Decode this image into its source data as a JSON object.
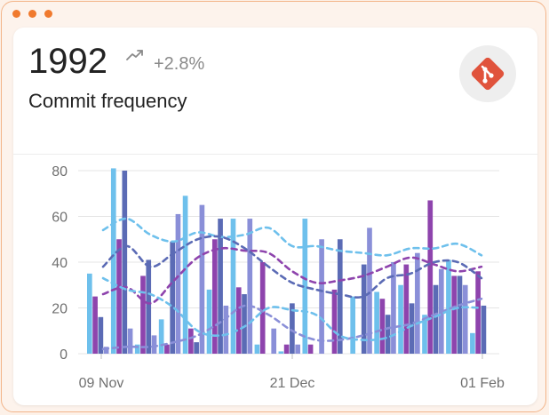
{
  "window": {
    "accent": "#f07a2e"
  },
  "metric": {
    "value": "1992",
    "trend_icon": "trending-up-icon",
    "change": "+2.8%",
    "label": "Commit frequency",
    "logo_icon": "git-logo-icon",
    "logo_color": "#e0533c"
  },
  "chart_data": {
    "type": "bar",
    "y_ticks": [
      "80",
      "60",
      "40",
      "20",
      "0"
    ],
    "x_ticks": [
      "09 Nov",
      "21 Dec",
      "01 Feb"
    ],
    "ylim": [
      0,
      80
    ],
    "colors": [
      "#6ec0ec",
      "#8e44ad",
      "#5b6bb5",
      "#8a8fd8"
    ],
    "groups": [
      [
        35,
        25,
        16,
        3
      ],
      [
        81,
        50,
        80,
        11
      ],
      [
        4,
        34,
        41,
        8
      ],
      [
        15,
        4,
        49,
        61
      ],
      [
        69,
        11,
        5,
        65
      ],
      [
        28,
        50,
        59,
        21
      ],
      [
        59,
        29,
        26,
        59
      ],
      [
        4,
        40,
        0,
        11
      ],
      [
        1,
        4,
        22,
        4
      ],
      [
        59,
        4,
        0,
        50
      ],
      [
        0,
        28,
        50,
        0
      ],
      [
        25,
        0,
        39,
        55
      ],
      [
        27,
        24,
        17,
        40
      ],
      [
        30,
        39,
        22,
        44
      ],
      [
        17,
        67,
        30,
        37
      ],
      [
        41,
        34,
        34,
        30
      ],
      [
        9,
        36,
        21,
        0
      ]
    ],
    "trend_lines": [
      {
        "color": "#6ec0ec",
        "values": [
          54,
          59,
          52,
          49,
          53,
          51,
          52,
          55,
          47,
          47,
          45,
          44,
          43,
          46,
          46,
          48,
          43
        ]
      },
      {
        "color": "#8e44ad",
        "values": [
          26,
          29,
          22,
          32,
          42,
          46,
          45,
          44,
          36,
          31,
          32,
          34,
          38,
          42,
          39,
          36,
          38
        ]
      },
      {
        "color": "#5b6bb5",
        "values": [
          38,
          47,
          38,
          44,
          50,
          51,
          46,
          38,
          31,
          28,
          26,
          25,
          33,
          35,
          40,
          40,
          33
        ]
      },
      {
        "color": "#8a8fd8",
        "values": [
          2,
          3,
          3,
          5,
          8,
          14,
          21,
          17,
          10,
          6,
          6,
          8,
          11,
          13,
          17,
          21,
          24
        ]
      },
      {
        "color": "#6ec0ec",
        "values": [
          33,
          28,
          26,
          20,
          10,
          8,
          12,
          20,
          19,
          17,
          8,
          6,
          7,
          12,
          16,
          20,
          20
        ]
      }
    ]
  }
}
